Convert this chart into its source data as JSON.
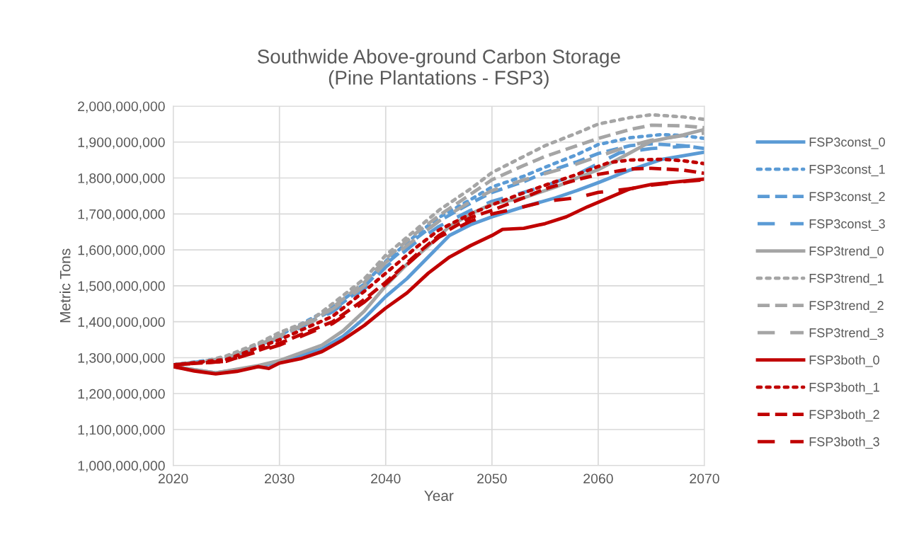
{
  "chart_data": {
    "type": "line",
    "title": "Southwide Above-ground Carbon Storage\n(Pine Plantations - FSP3)",
    "xlabel": "Year",
    "ylabel": "Metric Tons",
    "xlim": [
      2020,
      2070
    ],
    "xticks": [
      2020,
      2030,
      2040,
      2050,
      2060,
      2070
    ],
    "ylim": [
      1000000000,
      2000000000
    ],
    "yticks": [
      {
        "value": 1000000000,
        "label": "1,000,000,000"
      },
      {
        "value": 1100000000,
        "label": "1,100,000,000"
      },
      {
        "value": 1200000000,
        "label": "1,200,000,000"
      },
      {
        "value": 1300000000,
        "label": "1,300,000,000"
      },
      {
        "value": 1400000000,
        "label": "1,400,000,000"
      },
      {
        "value": 1500000000,
        "label": "1,500,000,000"
      },
      {
        "value": 1600000000,
        "label": "1,600,000,000"
      },
      {
        "value": 1700000000,
        "label": "1,700,000,000"
      },
      {
        "value": 1800000000,
        "label": "1,800,000,000"
      },
      {
        "value": 1900000000,
        "label": "1,900,000,000"
      },
      {
        "value": 2000000000,
        "label": "2,000,000,000"
      }
    ],
    "grid": true,
    "legend": "right",
    "marker": "none",
    "series": [
      {
        "name": "FSP3const_0",
        "color": "#5b9bd5",
        "line_style": "solid",
        "x": [
          2020,
          2024,
          2028,
          2030,
          2034,
          2036,
          2038,
          2040,
          2042,
          2044,
          2046,
          2048,
          2050,
          2053,
          2056,
          2058,
          2060,
          2063,
          2066,
          2068,
          2070
        ],
        "values": [
          1275000000,
          1258000000,
          1275000000,
          1288000000,
          1325000000,
          1360000000,
          1410000000,
          1470000000,
          1520000000,
          1580000000,
          1640000000,
          1670000000,
          1692000000,
          1720000000,
          1745000000,
          1765000000,
          1787000000,
          1822000000,
          1852000000,
          1862000000,
          1872000000
        ]
      },
      {
        "name": "FSP3const_1",
        "color": "#5b9bd5",
        "line_style": "dotted",
        "x": [
          2020,
          2025,
          2030,
          2035,
          2038,
          2040,
          2043,
          2045,
          2048,
          2050,
          2053,
          2055,
          2058,
          2060,
          2063,
          2066,
          2068,
          2070
        ],
        "values": [
          1280000000,
          1300000000,
          1362000000,
          1440000000,
          1505000000,
          1568000000,
          1645000000,
          1690000000,
          1740000000,
          1775000000,
          1805000000,
          1830000000,
          1865000000,
          1893000000,
          1912000000,
          1921000000,
          1918000000,
          1910000000
        ]
      },
      {
        "name": "FSP3const_2",
        "color": "#5b9bd5",
        "line_style": "dashed",
        "x": [
          2020,
          2025,
          2030,
          2035,
          2038,
          2040,
          2043,
          2045,
          2048,
          2050,
          2053,
          2055,
          2058,
          2060,
          2063,
          2065,
          2068,
          2070
        ],
        "values": [
          1280000000,
          1298000000,
          1358000000,
          1432000000,
          1498000000,
          1560000000,
          1635000000,
          1680000000,
          1730000000,
          1760000000,
          1790000000,
          1815000000,
          1845000000,
          1868000000,
          1890000000,
          1895000000,
          1890000000,
          1882000000
        ]
      },
      {
        "name": "FSP3const_3",
        "color": "#5b9bd5",
        "line_style": "long dashed",
        "x": [
          2020,
          2025,
          2030,
          2035,
          2038,
          2040,
          2043,
          2045,
          2048,
          2050,
          2053,
          2055,
          2058,
          2060,
          2062,
          2065,
          2068,
          2070
        ],
        "values": [
          1280000000,
          1296000000,
          1355000000,
          1428000000,
          1492000000,
          1552000000,
          1625000000,
          1665000000,
          1710000000,
          1735000000,
          1760000000,
          1778000000,
          1810000000,
          1840000000,
          1870000000,
          1882000000,
          1888000000,
          1890000000
        ]
      },
      {
        "name": "FSP3trend_0",
        "color": "#a5a5a5",
        "line_style": "solid",
        "x": [
          2020,
          2024,
          2028,
          2030,
          2034,
          2036,
          2038,
          2040,
          2042,
          2044,
          2046,
          2048,
          2050,
          2053,
          2056,
          2058,
          2060,
          2063,
          2065,
          2068,
          2070
        ],
        "values": [
          1275000000,
          1258000000,
          1278000000,
          1292000000,
          1335000000,
          1375000000,
          1430000000,
          1500000000,
          1560000000,
          1610000000,
          1665000000,
          1700000000,
          1728000000,
          1745000000,
          1775000000,
          1800000000,
          1823000000,
          1870000000,
          1902000000,
          1920000000,
          1935000000
        ]
      },
      {
        "name": "FSP3trend_1",
        "color": "#a5a5a5",
        "line_style": "dotted",
        "x": [
          2020,
          2023,
          2025,
          2028,
          2030,
          2033,
          2035,
          2038,
          2040,
          2043,
          2045,
          2048,
          2050,
          2053,
          2055,
          2058,
          2060,
          2063,
          2065,
          2068,
          2070
        ],
        "values": [
          1280000000,
          1290000000,
          1305000000,
          1340000000,
          1370000000,
          1405000000,
          1450000000,
          1520000000,
          1585000000,
          1660000000,
          1710000000,
          1770000000,
          1815000000,
          1860000000,
          1890000000,
          1925000000,
          1950000000,
          1968000000,
          1976000000,
          1970000000,
          1963000000
        ]
      },
      {
        "name": "FSP3trend_2",
        "color": "#a5a5a5",
        "line_style": "dashed",
        "x": [
          2020,
          2023,
          2025,
          2028,
          2030,
          2033,
          2035,
          2038,
          2040,
          2043,
          2045,
          2048,
          2050,
          2053,
          2055,
          2058,
          2060,
          2063,
          2065,
          2068,
          2070
        ],
        "values": [
          1280000000,
          1288000000,
          1300000000,
          1335000000,
          1362000000,
          1398000000,
          1440000000,
          1510000000,
          1575000000,
          1650000000,
          1695000000,
          1755000000,
          1795000000,
          1835000000,
          1860000000,
          1890000000,
          1910000000,
          1935000000,
          1947000000,
          1945000000,
          1940000000
        ]
      },
      {
        "name": "FSP3trend_3",
        "color": "#a5a5a5",
        "line_style": "long dashed",
        "x": [
          2020,
          2025,
          2030,
          2035,
          2038,
          2040,
          2043,
          2045,
          2048,
          2050,
          2053,
          2055,
          2057,
          2060,
          2063,
          2065,
          2068,
          2070
        ],
        "values": [
          1280000000,
          1298000000,
          1358000000,
          1435000000,
          1500000000,
          1565000000,
          1635000000,
          1680000000,
          1735000000,
          1765000000,
          1795000000,
          1812000000,
          1829000000,
          1860000000,
          1890000000,
          1905000000,
          1918000000,
          1925000000
        ]
      },
      {
        "name": "FSP3both_0",
        "color": "#c00000",
        "line_style": "solid",
        "x": [
          2020,
          2022,
          2024,
          2026,
          2028,
          2029,
          2030,
          2032,
          2034,
          2036,
          2038,
          2040,
          2042,
          2044,
          2046,
          2048,
          2050,
          2051,
          2053,
          2055,
          2057,
          2059,
          2061,
          2063,
          2065,
          2067,
          2070
        ],
        "values": [
          1275000000,
          1263000000,
          1255000000,
          1262000000,
          1275000000,
          1270000000,
          1285000000,
          1297000000,
          1317000000,
          1350000000,
          1390000000,
          1438000000,
          1480000000,
          1535000000,
          1580000000,
          1612000000,
          1640000000,
          1657000000,
          1660000000,
          1673000000,
          1692000000,
          1720000000,
          1745000000,
          1770000000,
          1782000000,
          1788000000,
          1797000000
        ]
      },
      {
        "name": "FSP3both_1",
        "color": "#c00000",
        "line_style": "dotted",
        "x": [
          2020,
          2025,
          2030,
          2035,
          2038,
          2040,
          2043,
          2045,
          2048,
          2050,
          2052,
          2055,
          2058,
          2061,
          2063,
          2066,
          2068,
          2070
        ],
        "values": [
          1280000000,
          1295000000,
          1350000000,
          1415000000,
          1485000000,
          1535000000,
          1610000000,
          1655000000,
          1700000000,
          1725000000,
          1748000000,
          1780000000,
          1810000000,
          1843000000,
          1850000000,
          1852000000,
          1848000000,
          1840000000
        ]
      },
      {
        "name": "FSP3both_2",
        "color": "#c00000",
        "line_style": "dashed",
        "x": [
          2020,
          2025,
          2030,
          2035,
          2038,
          2040,
          2043,
          2045,
          2048,
          2050,
          2053,
          2055,
          2058,
          2060,
          2063,
          2065,
          2068,
          2070
        ],
        "values": [
          1280000000,
          1290000000,
          1340000000,
          1400000000,
          1462000000,
          1510000000,
          1590000000,
          1640000000,
          1690000000,
          1710000000,
          1745000000,
          1770000000,
          1795000000,
          1810000000,
          1825000000,
          1827000000,
          1822000000,
          1813000000
        ]
      },
      {
        "name": "FSP3both_3",
        "color": "#c00000",
        "line_style": "long dashed",
        "x": [
          2020,
          2025,
          2030,
          2035,
          2038,
          2040,
          2043,
          2045,
          2048,
          2050,
          2053,
          2055,
          2058,
          2060,
          2063,
          2065,
          2068,
          2070
        ],
        "values": [
          1280000000,
          1290000000,
          1335000000,
          1395000000,
          1455000000,
          1505000000,
          1585000000,
          1635000000,
          1680000000,
          1700000000,
          1720000000,
          1735000000,
          1745000000,
          1760000000,
          1770000000,
          1780000000,
          1790000000,
          1795000000
        ]
      }
    ]
  }
}
